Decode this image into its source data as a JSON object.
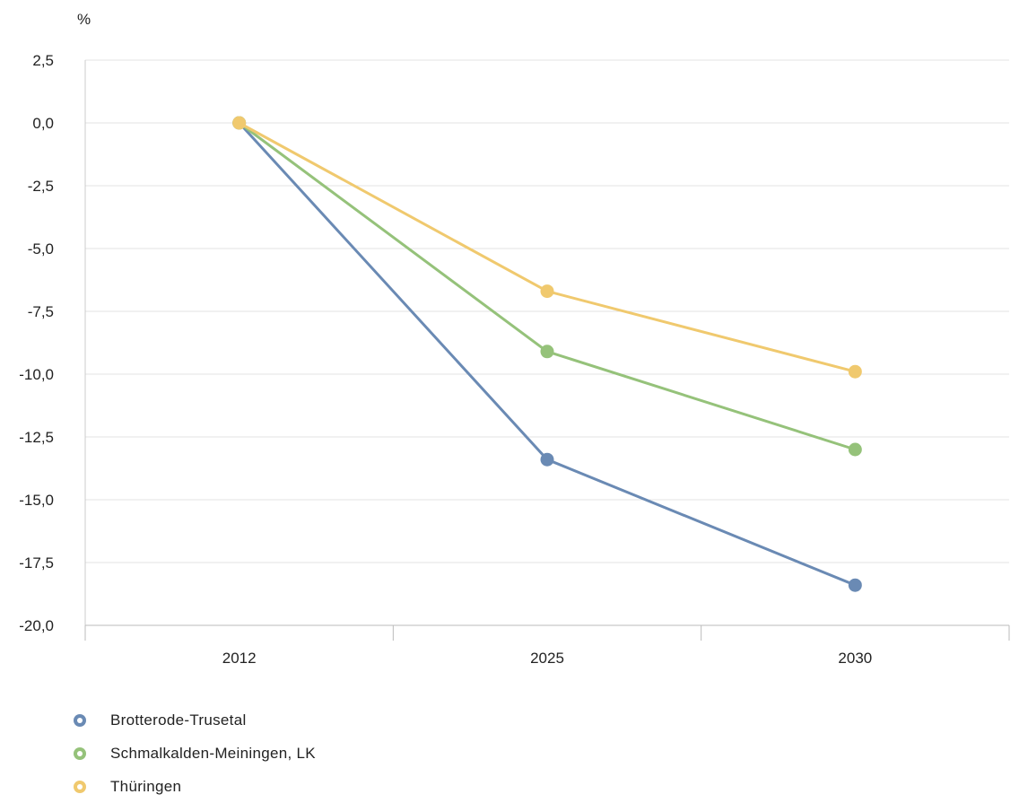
{
  "chart_data": {
    "type": "line",
    "ylabel": "%",
    "xlabel": "",
    "categories": [
      "2012",
      "2025",
      "2030"
    ],
    "ylim": [
      -20,
      2.5
    ],
    "yticks": [
      2.5,
      0,
      -2.5,
      -5,
      -7.5,
      -10,
      -12.5,
      -15,
      -17.5,
      -20
    ],
    "ytick_labels": [
      "2,5",
      "0,0",
      "-2,5",
      "-5,0",
      "-7,5",
      "-10,0",
      "-12,5",
      "-15,0",
      "-17,5",
      "-20,0"
    ],
    "grid": true,
    "legend_position": "bottom-left",
    "series": [
      {
        "name": "Brotterode-Trusetal",
        "values": [
          0,
          -13.4,
          -18.4
        ],
        "color": "#6a8ab4"
      },
      {
        "name": "Schmalkalden-Meiningen, LK",
        "values": [
          0,
          -9.1,
          -13.0
        ],
        "color": "#95c27a"
      },
      {
        "name": "Thüringen",
        "values": [
          0,
          -6.7,
          -9.9
        ],
        "color": "#f0c96e"
      }
    ]
  }
}
